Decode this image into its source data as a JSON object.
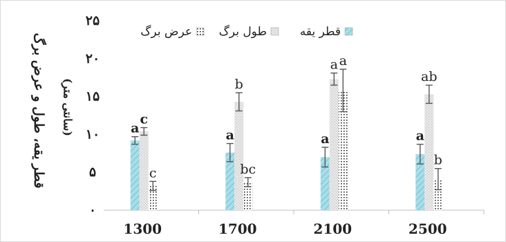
{
  "chart_data": {
    "type": "bar",
    "categories": [
      "1300",
      "1700",
      "2100",
      "2500"
    ],
    "ylim": [
      0,
      25
    ],
    "yticks": [
      "۰",
      "۵",
      "۱۰",
      "۱۵",
      "۲۰",
      "۲۵"
    ],
    "ytick_values": [
      0,
      5,
      10,
      15,
      20,
      25
    ],
    "ylabel": "قطر یقه، طول و عرض برگ",
    "ylabel_unit": "(سانتی متر)",
    "xlabel": "",
    "title": "",
    "grid": false,
    "legend_position": "top-right",
    "series": [
      {
        "name": "قطر یقه",
        "values": [
          9.2,
          7.6,
          7.0,
          7.4
        ],
        "errors": [
          0.5,
          1.2,
          1.3,
          1.3
        ],
        "labels": [
          "a",
          "a",
          "a",
          "a"
        ],
        "color": "#a9dde8",
        "pattern": "diagonal"
      },
      {
        "name": "طول برگ",
        "values": [
          10.4,
          14.3,
          17.3,
          15.3
        ],
        "errors": [
          0.5,
          1.2,
          0.8,
          1.2
        ],
        "labels": [
          "c",
          "b",
          "a",
          "ab"
        ],
        "color": "#dcdcdc",
        "pattern": "texture"
      },
      {
        "name": "عرض برگ",
        "values": [
          3.2,
          3.7,
          15.8,
          4.1
        ],
        "errors": [
          0.6,
          0.6,
          2.8,
          1.4
        ],
        "labels": [
          "c",
          "bc",
          "a",
          "b"
        ],
        "color": "#222222",
        "pattern": "dots"
      }
    ]
  }
}
